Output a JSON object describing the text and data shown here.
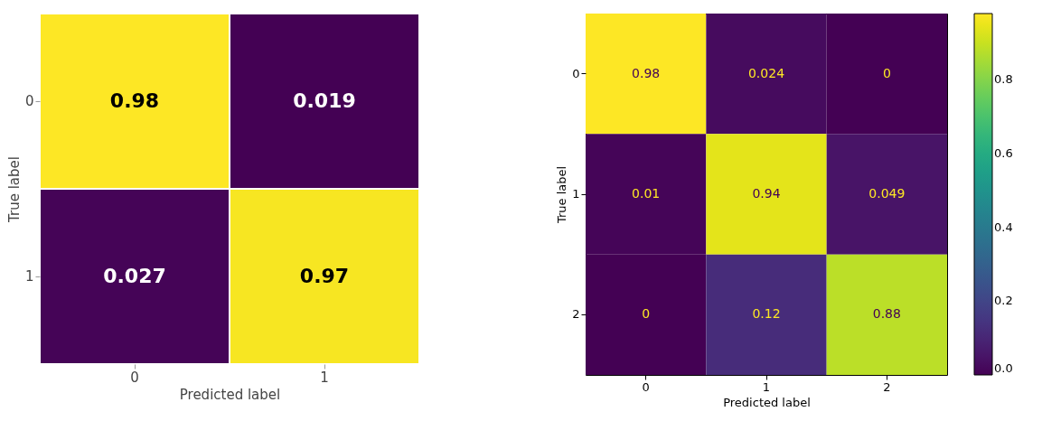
{
  "chart_data": [
    {
      "type": "heatmap",
      "xlabel": "Predicted label",
      "ylabel": "True label",
      "categories": [
        "0",
        "1"
      ],
      "y_categories": [
        "0",
        "1"
      ],
      "cells": [
        [
          0.98,
          0.019
        ],
        [
          0.027,
          0.97
        ]
      ],
      "data_labels": true
    },
    {
      "type": "heatmap",
      "xlabel": "Predicted label",
      "ylabel": "True label",
      "categories": [
        "0",
        "1",
        "2"
      ],
      "y_categories": [
        "0",
        "1",
        "2"
      ],
      "cells": [
        [
          0.98,
          0.024,
          0
        ],
        [
          0.01,
          0.94,
          0.049
        ],
        [
          0,
          0.12,
          0.88
        ]
      ],
      "data_labels": true,
      "clim": [
        0,
        0.98
      ],
      "cticks": [
        {
          "value": 0,
          "label": "0.0"
        },
        {
          "value": 0.2,
          "label": "0.2"
        },
        {
          "value": 0.4,
          "label": "0.4"
        },
        {
          "value": 0.6,
          "label": "0.6"
        },
        {
          "value": 0.8,
          "label": "0.8"
        }
      ]
    }
  ]
}
